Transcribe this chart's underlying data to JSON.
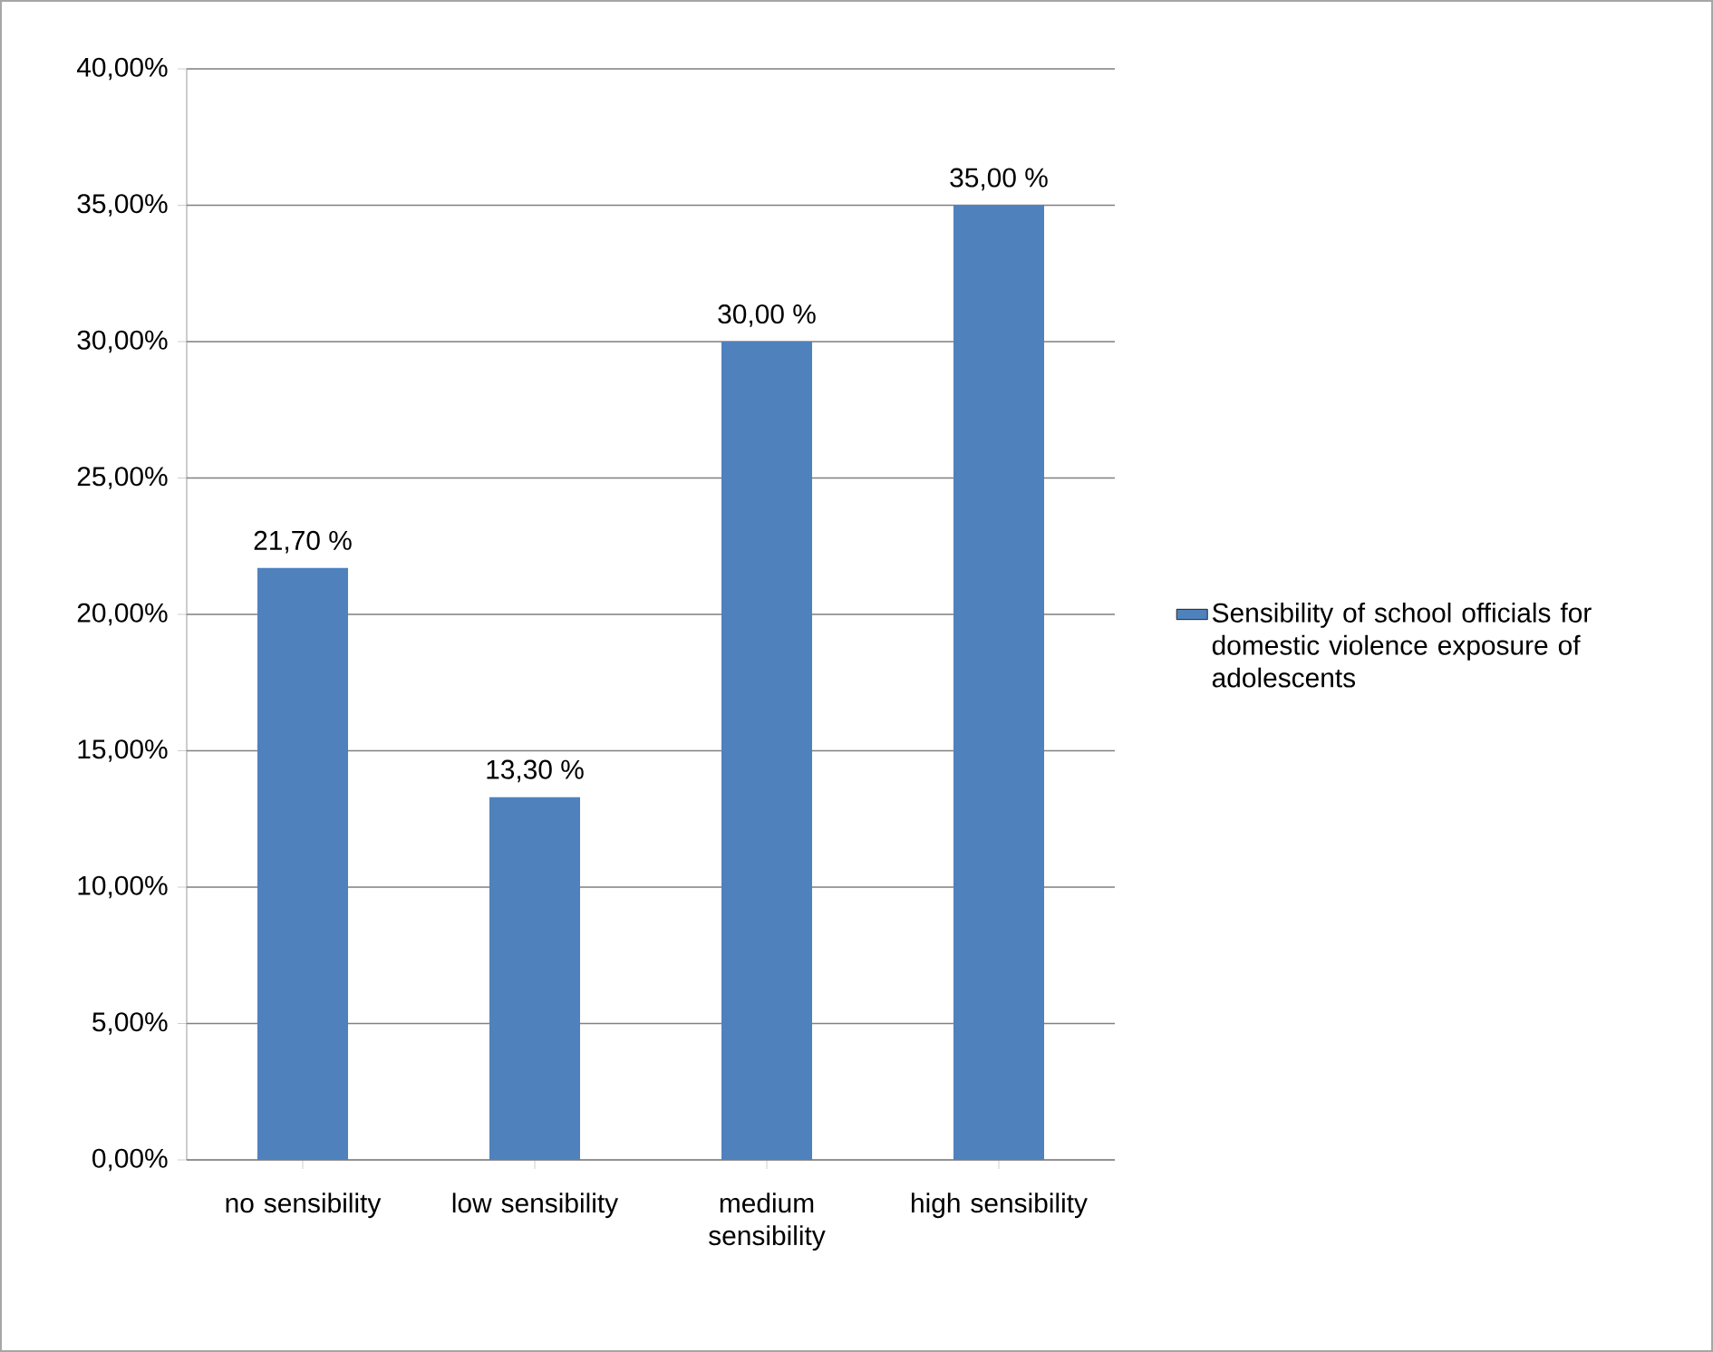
{
  "chart_data": {
    "type": "bar",
    "categories": [
      "no sensibility",
      "low sensibility",
      "medium sensibility",
      "high sensibility"
    ],
    "series": [
      {
        "name": "Sensibility of school officials for domestic violence exposure of adolescents",
        "color": "#4f81bd",
        "values": [
          21.7,
          13.3,
          30,
          35
        ],
        "value_labels": [
          "21,70 %",
          "13,30 %",
          "30,00 %",
          "35,00 %"
        ]
      }
    ],
    "ylim": [
      0,
      40
    ],
    "yticks": [
      {
        "value": 0,
        "label": "0,00%"
      },
      {
        "value": 5,
        "label": "5,00%"
      },
      {
        "value": 10,
        "label": "10,00%"
      },
      {
        "value": 15,
        "label": "15,00%"
      },
      {
        "value": 20,
        "label": "20,00%"
      },
      {
        "value": 25,
        "label": "25,00%"
      },
      {
        "value": 30,
        "label": "30,00%"
      },
      {
        "value": 35,
        "label": "35,00%"
      },
      {
        "value": 40,
        "label": "40,00%"
      }
    ],
    "grid": "y",
    "legend": "right"
  }
}
